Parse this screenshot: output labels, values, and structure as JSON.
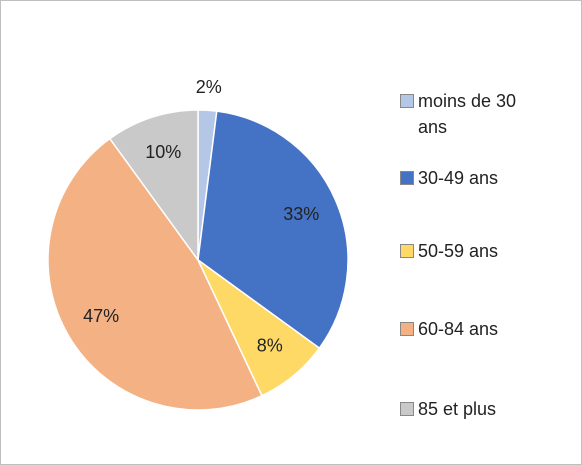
{
  "chart_data": {
    "type": "pie",
    "categories": [
      "moins de 30 ans",
      "30-49 ans",
      "50-59 ans",
      "60-84 ans",
      "85 et plus"
    ],
    "values": [
      2,
      33,
      8,
      47,
      10
    ],
    "value_labels": [
      "2%",
      "33%",
      "8%",
      "47%",
      "10%"
    ],
    "colors": [
      "#b4c7e7",
      "#4472c4",
      "#ffd966",
      "#f4b183",
      "#c9c9c9"
    ],
    "legend": "right"
  }
}
